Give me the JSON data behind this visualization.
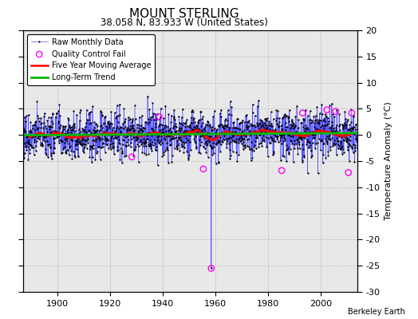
{
  "title": "MOUNT STERLING",
  "subtitle": "38.058 N, 83.933 W (United States)",
  "ylabel": "Temperature Anomaly (°C)",
  "credit": "Berkeley Earth",
  "xlim": [
    1887,
    2014
  ],
  "ylim": [
    -30,
    20
  ],
  "yticks": [
    -30,
    -25,
    -20,
    -15,
    -10,
    -5,
    0,
    5,
    10,
    15,
    20
  ],
  "xticks": [
    1900,
    1920,
    1940,
    1960,
    1980,
    2000
  ],
  "start_year": 1887,
  "end_year": 2013,
  "raw_color": "#5555ff",
  "raw_dot_color": "#000000",
  "ma_color": "#ff0000",
  "trend_color": "#00bb00",
  "qc_color": "#ff00ff",
  "background_color": "#e8e8e8",
  "grid_color": "#bbbbbb",
  "title_fontsize": 11,
  "subtitle_fontsize": 8.5,
  "seed": 77,
  "anomaly_mean": 0.0,
  "anomaly_std": 2.2,
  "trend_slope": 0.0002,
  "outlier_year": 1958,
  "outlier_month": 6,
  "outlier_value": -25.5,
  "qc_points": [
    {
      "year": 1928,
      "month": 4,
      "value": -4.2
    },
    {
      "year": 1938,
      "month": 8,
      "value": 3.5
    },
    {
      "year": 1955,
      "month": 6,
      "value": -6.5
    },
    {
      "year": 1985,
      "month": 3,
      "value": -6.8
    },
    {
      "year": 1993,
      "month": 2,
      "value": 4.2
    },
    {
      "year": 2002,
      "month": 5,
      "value": 4.8
    },
    {
      "year": 2005,
      "month": 9,
      "value": 4.5
    },
    {
      "year": 2010,
      "month": 7,
      "value": -7.2
    },
    {
      "year": 2011,
      "month": 10,
      "value": 4.2
    }
  ]
}
